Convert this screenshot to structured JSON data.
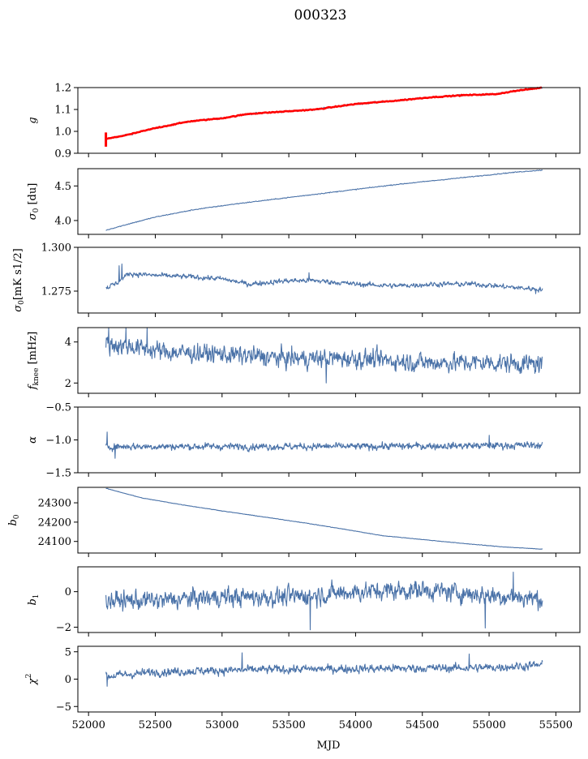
{
  "figure": {
    "title": "000323",
    "xlabel": "MJD"
  },
  "colors": {
    "series": "#4a72a8",
    "fit": "#ff0000"
  },
  "chart_data": [
    {
      "type": "line",
      "ylabel": "g",
      "ylim": [
        0.9,
        1.2
      ],
      "yticks": [
        "0.9",
        "1.0",
        "1.1",
        "1.2"
      ],
      "xlim": [
        51920,
        55680
      ],
      "xticks": [
        "52000",
        "52500",
        "53000",
        "53500",
        "54000",
        "54500",
        "55000",
        "55500"
      ],
      "show_xticklabels": false,
      "series": [
        {
          "kind": "trend",
          "noise": 0.004,
          "x": [
            52130,
            52300,
            52500,
            52750,
            53000,
            53200,
            53450,
            53700,
            54000,
            54300,
            54550,
            54800,
            55050,
            55200,
            55400
          ],
          "values": [
            0.965,
            0.985,
            1.015,
            1.045,
            1.06,
            1.08,
            1.09,
            1.1,
            1.125,
            1.14,
            1.155,
            1.165,
            1.17,
            1.185,
            1.2
          ]
        },
        {
          "kind": "fit",
          "x": [
            52130,
            52300,
            52500,
            52750,
            53000,
            53200,
            53450,
            53700,
            54000,
            54300,
            54550,
            54800,
            55050,
            55200,
            55400
          ],
          "values": [
            0.965,
            0.985,
            1.015,
            1.045,
            1.06,
            1.08,
            1.09,
            1.1,
            1.125,
            1.14,
            1.155,
            1.165,
            1.17,
            1.185,
            1.2
          ],
          "marker_x": 52130,
          "marker_range": [
            0.93,
            0.995
          ]
        }
      ]
    },
    {
      "type": "line",
      "ylabel": "σ0 [du]",
      "ylim": [
        3.8,
        4.75
      ],
      "yticks": [
        "4.0",
        "4.5"
      ],
      "xlim": [
        51920,
        55680
      ],
      "xticks": [
        "52000",
        "52500",
        "53000",
        "53500",
        "54000",
        "54500",
        "55000",
        "55500"
      ],
      "show_xticklabels": false,
      "series": [
        {
          "kind": "trend",
          "noise": 0.006,
          "x": [
            52130,
            52300,
            52500,
            52800,
            53100,
            53400,
            53700,
            54000,
            54300,
            54600,
            54900,
            55200,
            55400
          ],
          "values": [
            3.86,
            3.95,
            4.05,
            4.16,
            4.24,
            4.31,
            4.38,
            4.45,
            4.52,
            4.58,
            4.64,
            4.7,
            4.73
          ]
        }
      ]
    },
    {
      "type": "line",
      "ylabel": "σ0[mK s1/2]",
      "ylim": [
        1.2625,
        1.3
      ],
      "yticks": [
        "1.275",
        "1.300"
      ],
      "xlim": [
        51920,
        55680
      ],
      "xticks": [
        "52000",
        "52500",
        "53000",
        "53500",
        "54000",
        "54500",
        "55000",
        "55500"
      ],
      "show_xticklabels": false,
      "series": [
        {
          "kind": "noise",
          "noise": 0.0012,
          "spikes": [
            [
              52250,
              1.2905
            ],
            [
              52230,
              1.2895
            ],
            [
              53650,
              1.2855
            ],
            [
              55350,
              1.2735
            ]
          ],
          "x": [
            52130,
            52200,
            52300,
            52500,
            52800,
            53000,
            53200,
            53500,
            53700,
            54000,
            54300,
            54600,
            54900,
            55200,
            55400
          ],
          "values": [
            1.277,
            1.279,
            1.285,
            1.284,
            1.283,
            1.282,
            1.279,
            1.281,
            1.281,
            1.279,
            1.278,
            1.279,
            1.279,
            1.277,
            1.276
          ]
        }
      ]
    },
    {
      "type": "line",
      "ylabel": "fknee [mHz]",
      "ylim": [
        1.5,
        4.7
      ],
      "yticks": [
        "2",
        "4"
      ],
      "xlim": [
        51920,
        55680
      ],
      "xticks": [
        "52000",
        "52500",
        "53000",
        "53500",
        "54000",
        "54500",
        "55000",
        "55500"
      ],
      "show_xticklabels": false,
      "series": [
        {
          "kind": "noise",
          "noise": 0.38,
          "spikes": [
            [
              52150,
              4.7
            ],
            [
              52280,
              4.7
            ],
            [
              52440,
              4.7
            ],
            [
              53780,
              2.0
            ]
          ],
          "x": [
            52130,
            52300,
            52600,
            53000,
            53500,
            54000,
            54500,
            55000,
            55400
          ],
          "values": [
            3.9,
            3.8,
            3.5,
            3.4,
            3.2,
            3.2,
            3.0,
            3.0,
            2.9
          ]
        }
      ]
    },
    {
      "type": "line",
      "ylabel": "α",
      "ylim": [
        -1.5,
        -0.5
      ],
      "yticks": [
        "−1.5",
        "−1.0",
        "−0.5"
      ],
      "xlim": [
        51920,
        55680
      ],
      "xticks": [
        "52000",
        "52500",
        "53000",
        "53500",
        "54000",
        "54500",
        "55000",
        "55500"
      ],
      "show_xticklabels": false,
      "series": [
        {
          "kind": "noise",
          "noise": 0.045,
          "spikes": [
            [
              52140,
              -0.88
            ],
            [
              52200,
              -1.28
            ],
            [
              55000,
              -0.93
            ]
          ],
          "x": [
            52130,
            53000,
            54000,
            55400
          ],
          "values": [
            -1.1,
            -1.1,
            -1.1,
            -1.08
          ]
        }
      ]
    },
    {
      "type": "line",
      "ylabel": "b0",
      "ylim": [
        24040,
        24380
      ],
      "yticks": [
        "24100",
        "24200",
        "24300"
      ],
      "xlim": [
        51920,
        55680
      ],
      "xticks": [
        "52000",
        "52500",
        "53000",
        "53500",
        "54000",
        "54500",
        "55000",
        "55500"
      ],
      "show_xticklabels": false,
      "series": [
        {
          "kind": "trend",
          "noise": 1.2,
          "x": [
            52130,
            52400,
            52700,
            53000,
            53300,
            53600,
            53900,
            54200,
            54500,
            54800,
            55100,
            55400
          ],
          "values": [
            24375,
            24325,
            24290,
            24258,
            24228,
            24198,
            24165,
            24130,
            24110,
            24090,
            24072,
            24060
          ]
        }
      ]
    },
    {
      "type": "line",
      "ylabel": "b1",
      "ylim": [
        -2.3,
        1.4
      ],
      "yticks": [
        "−2",
        "0"
      ],
      "xlim": [
        51920,
        55680
      ],
      "xticks": [
        "52000",
        "52500",
        "53000",
        "53500",
        "54000",
        "54500",
        "55000",
        "55500"
      ],
      "show_xticklabels": false,
      "series": [
        {
          "kind": "noise",
          "noise": 0.45,
          "spikes": [
            [
              53660,
              -2.15
            ],
            [
              54970,
              -2.05
            ],
            [
              55180,
              1.1
            ]
          ],
          "x": [
            52130,
            52500,
            53000,
            53500,
            54000,
            54500,
            55000,
            55400
          ],
          "values": [
            -0.5,
            -0.5,
            -0.3,
            -0.3,
            0.0,
            0.1,
            -0.2,
            -0.4
          ]
        }
      ]
    },
    {
      "type": "line",
      "ylabel": "χ2",
      "ylim": [
        -6,
        6
      ],
      "yticks": [
        "−5",
        "0",
        "5"
      ],
      "xlim": [
        51920,
        55680
      ],
      "xticks": [
        "52000",
        "52500",
        "53000",
        "53500",
        "54000",
        "54500",
        "55000",
        "55500"
      ],
      "show_xticklabels": true,
      "series": [
        {
          "kind": "noise",
          "noise": 0.65,
          "spikes": [
            [
              52140,
              -1.3
            ],
            [
              53150,
              4.8
            ],
            [
              54850,
              4.6
            ]
          ],
          "x": [
            52130,
            52500,
            53000,
            53500,
            54000,
            54500,
            55000,
            55400
          ],
          "values": [
            0.5,
            1.3,
            1.6,
            1.8,
            1.9,
            2.0,
            2.1,
            2.6
          ]
        }
      ]
    }
  ]
}
